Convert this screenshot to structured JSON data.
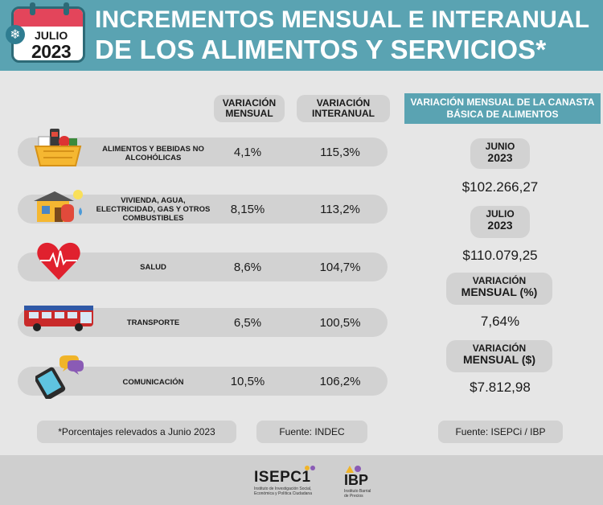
{
  "header": {
    "calendar_month": "JULIO",
    "calendar_year": "2023",
    "title_line1": "INCREMENTOS MENSUAL E INTERANUAL",
    "title_line2": "DE LOS ALIMENTOS Y SERVICIOS*"
  },
  "table": {
    "col_mensual": "VARIACIÓN MENSUAL",
    "col_interanual": "VARIACIÓN INTERANUAL",
    "rows": [
      {
        "label": "ALIMENTOS Y BEBIDAS NO ALCOHÓLICAS",
        "icon": "grocery-basket-icon",
        "mensual": "4,1%",
        "interanual": "115,3%"
      },
      {
        "label": "VIVIENDA, AGUA, ELECTRICIDAD, GAS Y OTROS COMBUSTIBLES",
        "icon": "house-utilities-icon",
        "mensual": "8,15%",
        "interanual": "113,2%"
      },
      {
        "label": "SALUD",
        "icon": "heart-pulse-icon",
        "mensual": "8,6%",
        "interanual": "104,7%"
      },
      {
        "label": "TRANSPORTE",
        "icon": "bus-icon",
        "mensual": "6,5%",
        "interanual": "100,5%"
      },
      {
        "label": "COMUNICACIÓN",
        "icon": "smartphone-chat-icon",
        "mensual": "10,5%",
        "interanual": "106,2%"
      }
    ]
  },
  "canasta": {
    "heading": "VARIACIÓN MENSUAL DE LA CANASTA BÁSICA DE ALIMENTOS",
    "junio_label_1": "JUNIO",
    "junio_label_2": "2023",
    "junio_value": "$102.266,27",
    "julio_label_1": "JULIO",
    "julio_label_2": "2023",
    "julio_value": "$110.079,25",
    "var_pct_label_1": "VARIACIÓN",
    "var_pct_label_2": "MENSUAL (%)",
    "var_pct_value": "7,64%",
    "var_abs_label_1": "VARIACIÓN",
    "var_abs_label_2": "MENSUAL ($)",
    "var_abs_value": "$7.812,98"
  },
  "footer": {
    "note": "*Porcentajes relevados a Junio 2023",
    "source_indec": "Fuente: INDEC",
    "source_isepci": "Fuente: ISEPCi / IBP"
  },
  "logos": {
    "isepci_name": "ISEPC1",
    "isepci_sub": "Instituto de Investigación Social, Económica y Política Ciudadana",
    "ibp_name": "IBP",
    "ibp_sub": "Instituto Barrial de Precios"
  },
  "colors": {
    "header_bg": "#5aa3b2",
    "pill_bg": "#d2d2d2",
    "page_bg": "#e6e6e6"
  }
}
